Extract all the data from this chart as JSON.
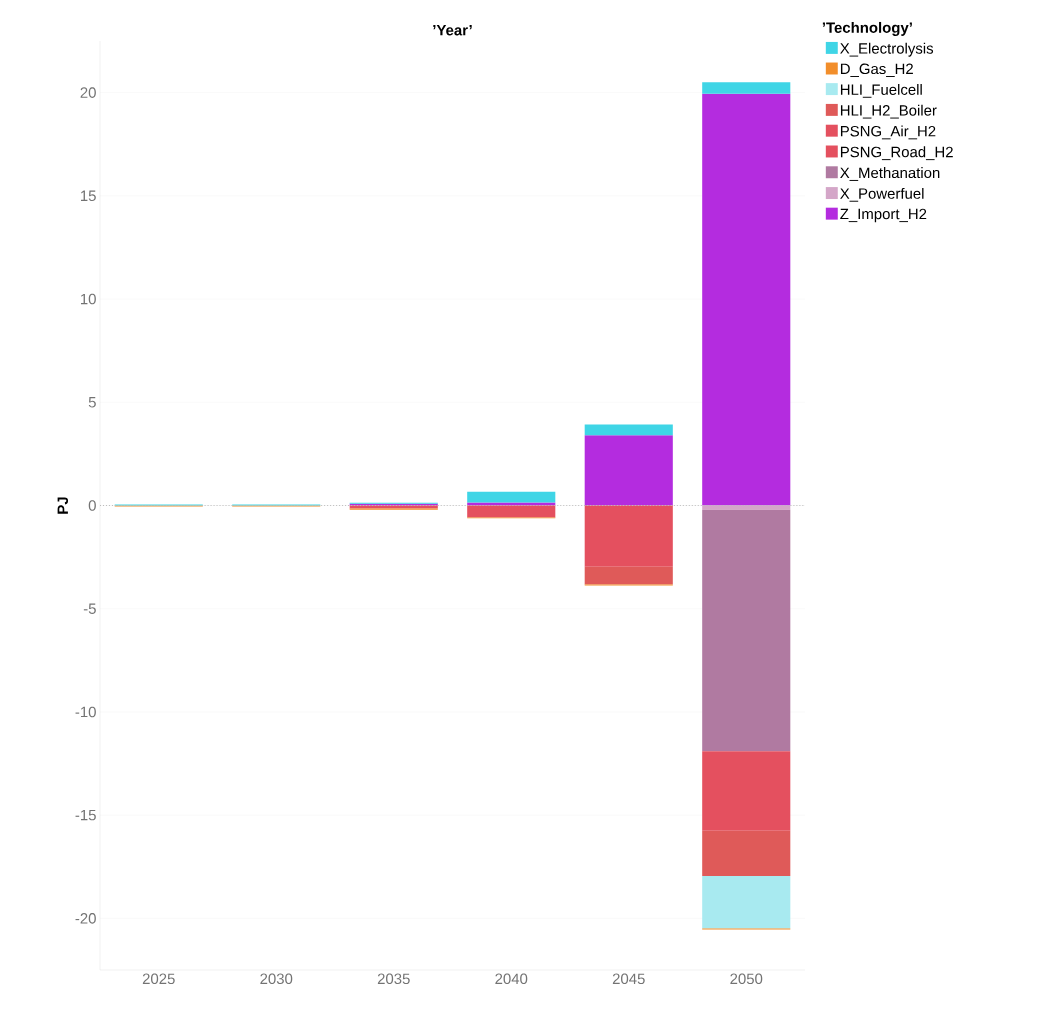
{
  "chart_data": {
    "type": "bar",
    "stacked": true,
    "title": "’Year’",
    "ylabel": "PJ",
    "legend_title": "’Technology’",
    "categories": [
      "2025",
      "2030",
      "2035",
      "2040",
      "2045",
      "2050"
    ],
    "series": [
      {
        "name": "Z_Import_H2",
        "color": "#b42cdf",
        "values": [
          null,
          null,
          0.08,
          0.14,
          3.4,
          19.95
        ]
      },
      {
        "name": "X_Powerfuel",
        "color": "#d4a6c8",
        "values": [
          null,
          null,
          null,
          null,
          null,
          -0.2
        ]
      },
      {
        "name": "X_Methanation",
        "color": "#b07aa1",
        "values": [
          null,
          null,
          null,
          null,
          null,
          -11.7
        ]
      },
      {
        "name": "PSNG_Road_H2",
        "color": "#e4505f",
        "values": [
          null,
          null,
          -0.15,
          -0.58,
          -2.97,
          -3.85
        ]
      },
      {
        "name": "PSNG_Air_H2",
        "color": "#e4505f",
        "values": [
          null,
          null,
          null,
          null,
          null,
          null
        ]
      },
      {
        "name": "HLI_H2_Boiler",
        "color": "#df5a59",
        "values": [
          null,
          null,
          null,
          null,
          -0.86,
          -2.2
        ]
      },
      {
        "name": "HLI_Fuelcell",
        "color": "#a8eaf0",
        "values": [
          null,
          null,
          null,
          null,
          null,
          -2.54
        ]
      },
      {
        "name": "D_Gas_H2",
        "color": "#f28e2b",
        "values": [
          -0.05,
          -0.05,
          -0.05,
          -0.04,
          -0.05,
          -0.05
        ]
      },
      {
        "name": "X_Electrolysis",
        "color": "#3fd5e6",
        "values": [
          0.05,
          0.05,
          0.05,
          0.53,
          0.52,
          0.55
        ]
      }
    ],
    "ylim": [
      -22.5,
      22.5
    ],
    "yticks": [
      -20,
      -15,
      -10,
      -5,
      0,
      5,
      10,
      15,
      20
    ],
    "grid": "y",
    "legend": "right",
    "ref_lines": [
      {
        "axis": "y",
        "value": 0,
        "line_style": "dotted",
        "color": "#bbbbbb"
      }
    ]
  }
}
